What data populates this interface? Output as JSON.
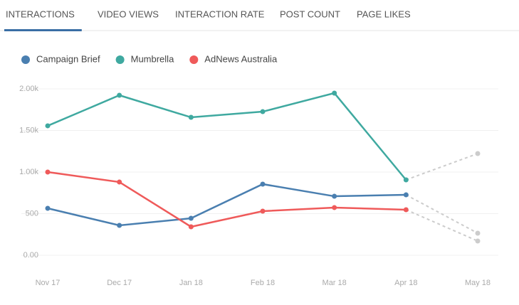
{
  "tabs": [
    "INTERACTIONS",
    "VIDEO VIEWS",
    "INTERACTION RATE",
    "POST COUNT",
    "PAGE LIKES"
  ],
  "active_tab": 0,
  "chart_data": {
    "type": "line",
    "categories": [
      "Nov 17",
      "Dec 17",
      "Jan 18",
      "Feb 18",
      "Mar 18",
      "Apr 18",
      "May 18"
    ],
    "series": [
      {
        "name": "Campaign Brief",
        "color": "#4a7fb0",
        "values": [
          564,
          359,
          444,
          855,
          709,
          726,
          265
        ]
      },
      {
        "name": "Mumbrella",
        "color": "#3fa9a0",
        "values": [
          1556,
          1923,
          1658,
          1726,
          1949,
          906,
          1222
        ]
      },
      {
        "name": "AdNews Australia",
        "color": "#ef5a5a",
        "values": [
          1000,
          880,
          342,
          530,
          573,
          547,
          171
        ]
      }
    ],
    "projected": {
      "count": 1,
      "color": "#cccccc",
      "dashed": true
    },
    "ylim": [
      0,
      2000
    ],
    "yticks": [
      {
        "value": 0,
        "label": "0.00"
      },
      500,
      {
        "value": 1000,
        "label": "1.00k"
      },
      {
        "value": 1500,
        "label": "1.50k"
      },
      {
        "value": 2000,
        "label": "2.00k"
      }
    ],
    "grid": true,
    "legend": "top-left"
  }
}
